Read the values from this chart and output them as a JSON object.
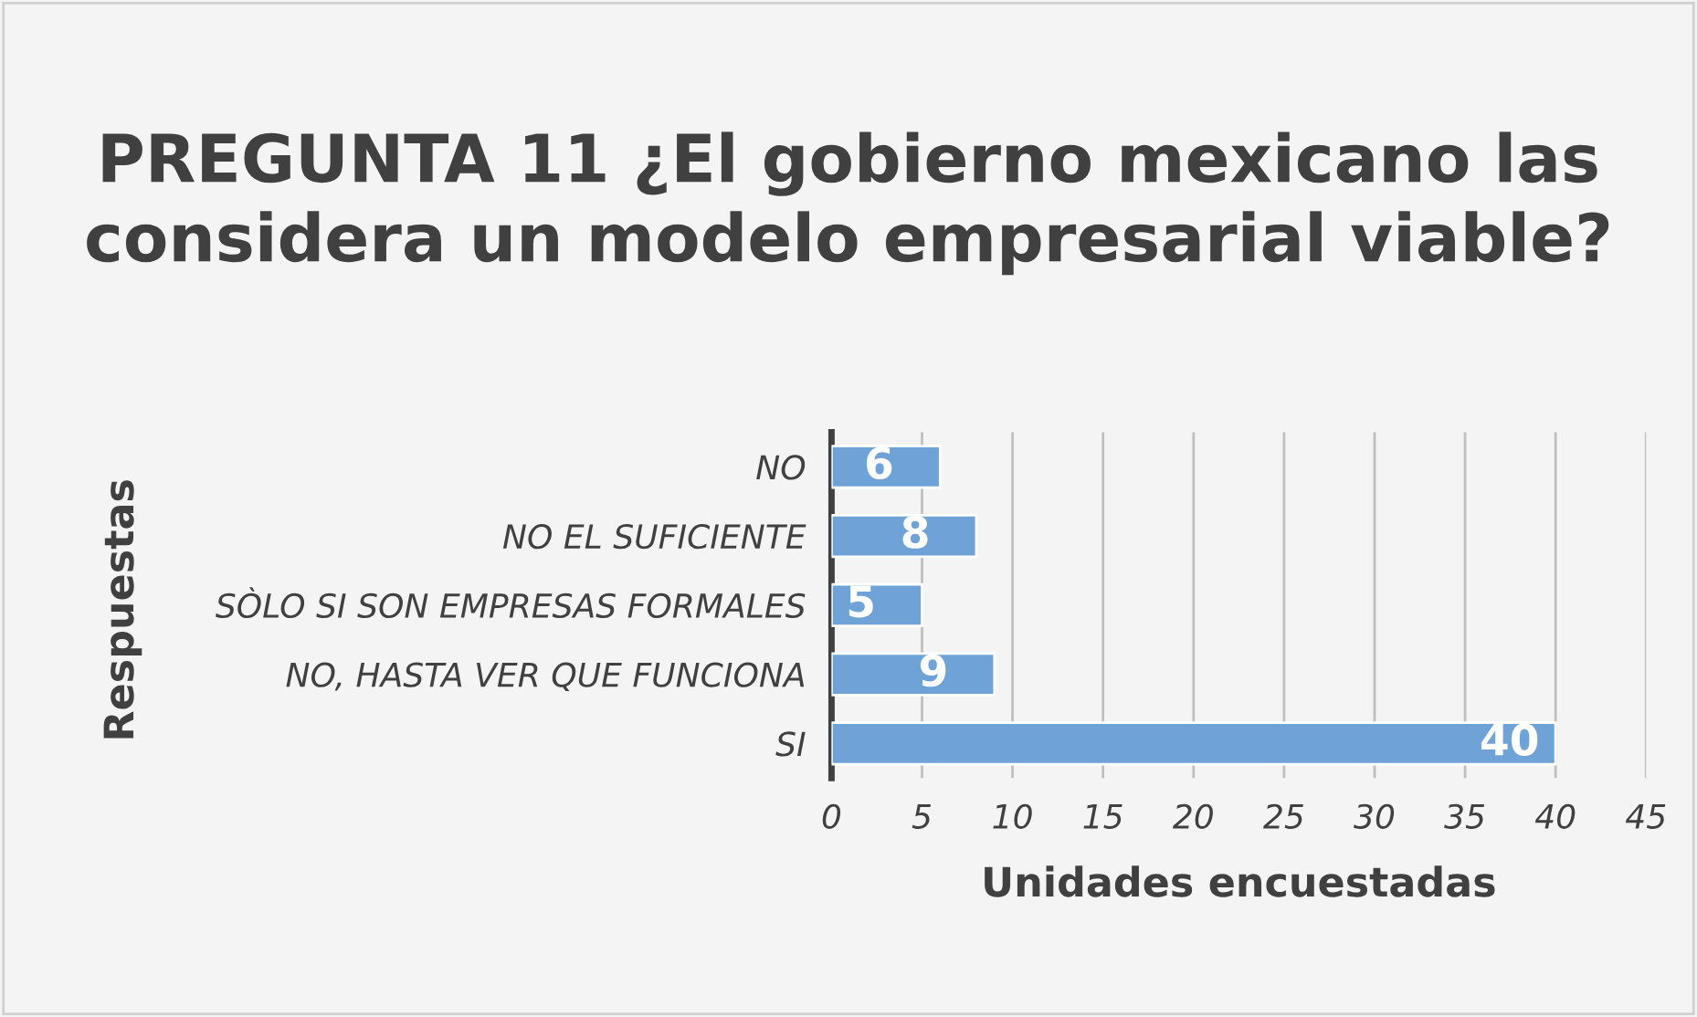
{
  "chart_data": {
    "type": "bar",
    "orientation": "horizontal",
    "title": "PREGUNTA 11 ¿El gobierno mexicano las considera un modelo empresarial viable?",
    "xlabel": "Unidades encuestadas",
    "ylabel": "Respuestas",
    "categories": [
      "NO",
      "NO EL SUFICIENTE",
      "SÒLO SI SON EMPRESAS FORMALES",
      "NO, HASTA VER QUE FUNCIONA",
      "SI"
    ],
    "values": [
      6,
      8,
      5,
      9,
      40
    ],
    "color": "#6fa3d8",
    "data_labels": true,
    "xlim": [
      0,
      45
    ],
    "xticks": [
      0,
      5,
      10,
      15,
      20,
      25,
      30,
      35,
      40,
      45
    ],
    "grid": "x",
    "legend": false
  }
}
